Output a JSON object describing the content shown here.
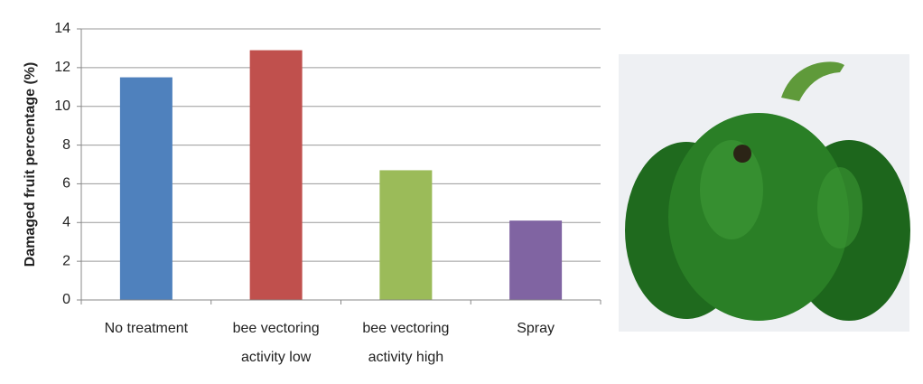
{
  "chart_data": {
    "type": "bar",
    "y_label": "Damaged fruit percentage  (%)",
    "categories": [
      "No treatment",
      "bee vectoring activity low",
      "bee vectoring activity high",
      "Spray"
    ],
    "values": [
      11.5,
      12.9,
      6.7,
      4.1
    ],
    "colors": [
      "#4f81bd",
      "#c0504d",
      "#9bbb59",
      "#8064a2"
    ],
    "ylim": [
      0,
      14
    ],
    "yticks": [
      0,
      2,
      4,
      6,
      8,
      10,
      12,
      14
    ],
    "grid": true
  }
}
